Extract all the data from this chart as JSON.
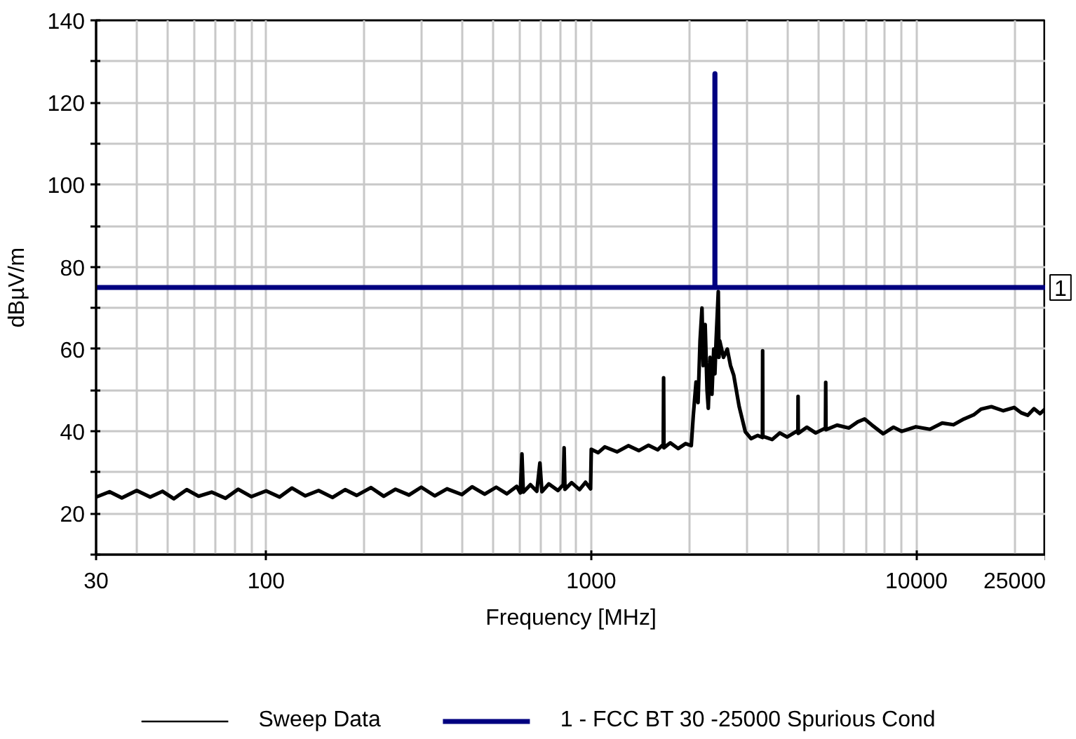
{
  "chart_data": {
    "type": "line",
    "xlabel": "Frequency [MHz]",
    "ylabel": "dBµV/m",
    "log": "x",
    "grid": true,
    "legend": "bottom",
    "line_style": "solid",
    "xlim": [
      30,
      25000
    ],
    "xticks": [
      30,
      100,
      1000,
      10000,
      25000
    ],
    "ylim": [
      10,
      140
    ],
    "yticks": [
      {
        "value": 10,
        "label": null
      },
      20,
      {
        "value": 30,
        "label": null
      },
      40,
      {
        "value": 50,
        "label": null
      },
      60,
      {
        "value": 70,
        "label": null
      },
      80,
      {
        "value": 90,
        "label": null
      },
      100,
      {
        "value": 110,
        "label": null
      },
      120,
      {
        "value": 130,
        "label": null
      },
      140
    ],
    "annotations": [
      {
        "text": "1",
        "x": 25000,
        "y": 75
      }
    ],
    "series": [
      {
        "name": "Sweep Data",
        "color": "#000000",
        "x": [
          30,
          33,
          36,
          40,
          44,
          48,
          52,
          57,
          62,
          68,
          75,
          82,
          90,
          100,
          110,
          120,
          132,
          145,
          160,
          175,
          190,
          210,
          230,
          250,
          275,
          300,
          330,
          360,
          400,
          430,
          470,
          510,
          550,
          590,
          605,
          612,
          618,
          650,
          680,
          695,
          705,
          740,
          790,
          820,
          825,
          830,
          870,
          920,
          960,
          995,
          1000,
          1050,
          1100,
          1200,
          1300,
          1400,
          1500,
          1600,
          1665,
          1669,
          1673,
          1750,
          1850,
          1950,
          2030,
          2060,
          2100,
          2130,
          2160,
          2190,
          2210,
          2240,
          2270,
          2290,
          2320,
          2350,
          2380,
          2400,
          2420,
          2458,
          2470,
          2484,
          2550,
          2620,
          2680,
          2743,
          2850,
          2976,
          3100,
          3250,
          3360,
          3365,
          3370,
          3600,
          3800,
          4000,
          4320,
          4325,
          4330,
          4600,
          4900,
          5250,
          5260,
          5270,
          5700,
          6200,
          6600,
          6925,
          7300,
          7900,
          8500,
          9000,
          9960,
          11000,
          12000,
          13000,
          14000,
          15000,
          15800,
          17000,
          18500,
          19970,
          21000,
          22000,
          23000,
          24000,
          25000
        ],
        "values": [
          24.0,
          25.3,
          23.8,
          25.6,
          24.0,
          25.4,
          23.6,
          25.8,
          24.2,
          25.2,
          23.7,
          25.9,
          24.1,
          25.5,
          24.0,
          26.2,
          24.3,
          25.6,
          23.9,
          25.8,
          24.4,
          26.3,
          24.2,
          25.9,
          24.5,
          26.4,
          24.3,
          26.0,
          24.6,
          26.5,
          24.7,
          26.4,
          24.8,
          26.6,
          25.0,
          34.5,
          25.2,
          27.0,
          25.4,
          32.3,
          25.3,
          27.2,
          25.6,
          27.0,
          36.0,
          25.9,
          27.5,
          25.8,
          27.6,
          26.0,
          35.6,
          34.8,
          36.2,
          35.0,
          36.5,
          35.3,
          36.6,
          35.5,
          36.8,
          53.0,
          36.0,
          37.2,
          35.8,
          37.0,
          36.5,
          44.0,
          52.0,
          47.0,
          62.0,
          70.0,
          56.0,
          66.0,
          50.0,
          45.6,
          58.0,
          49.0,
          60.0,
          54.0,
          62.0,
          74.0,
          58.0,
          62.0,
          58.0,
          60.0,
          56.0,
          53.6,
          46.0,
          39.9,
          38.2,
          39.0,
          38.5,
          59.6,
          38.8,
          38.0,
          39.6,
          38.6,
          40.2,
          48.5,
          39.5,
          41.0,
          39.6,
          40.8,
          51.9,
          40.4,
          41.5,
          40.8,
          42.3,
          43.0,
          41.5,
          39.4,
          41.0,
          40.0,
          41.1,
          40.5,
          42.0,
          41.6,
          43.0,
          44.0,
          45.4,
          46.0,
          45.0,
          45.8,
          44.5,
          43.9,
          45.5,
          44.3,
          45.6
        ]
      },
      {
        "name": "1 - FCC BT 30 -25000 Spurious Cond",
        "color": "#000080",
        "x": [
          30,
          2400,
          2400,
          2400,
          25000
        ],
        "values": [
          75,
          75,
          127,
          75,
          75
        ]
      }
    ]
  }
}
